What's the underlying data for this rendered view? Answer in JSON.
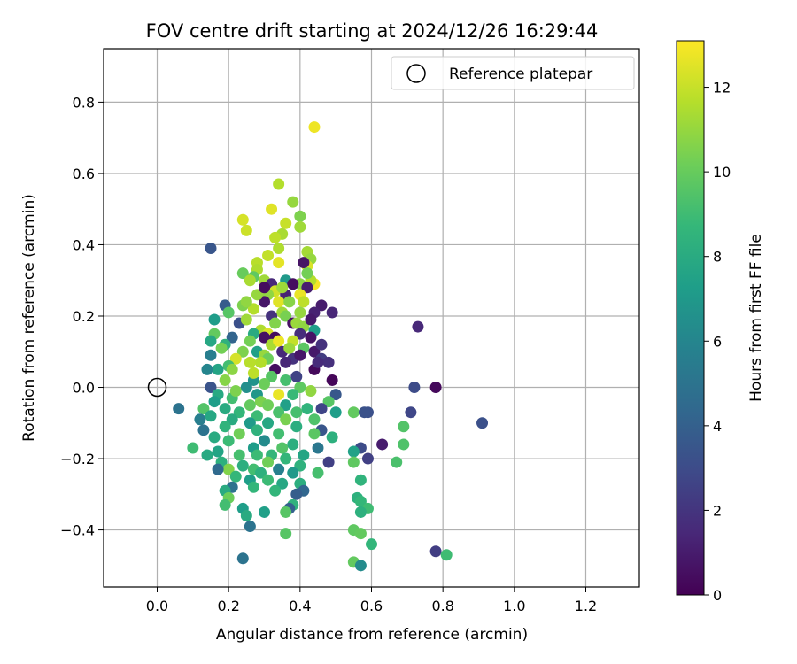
{
  "chart_data": {
    "type": "scatter",
    "title": "FOV centre drift starting at 2024/12/26 16:29:44",
    "xlabel": "Angular distance from reference (arcmin)",
    "ylabel": "Rotation from reference (arcmin)",
    "xlim": [
      -0.15,
      1.35
    ],
    "ylim": [
      -0.56,
      0.95
    ],
    "xticks": [
      0.0,
      0.2,
      0.4,
      0.6,
      0.8,
      1.0,
      1.2
    ],
    "xtick_labels": [
      "0.0",
      "0.2",
      "0.4",
      "0.6",
      "0.8",
      "1.0",
      "1.2"
    ],
    "yticks": [
      -0.4,
      -0.2,
      0.0,
      0.2,
      0.4,
      0.6,
      0.8
    ],
    "ytick_labels": [
      "−0.4",
      "−0.2",
      "0.0",
      "0.2",
      "0.4",
      "0.6",
      "0.8"
    ],
    "grid": true,
    "legend": {
      "placement": "top-right",
      "entries": [
        {
          "label": "Reference platepar",
          "marker": "open-circle"
        }
      ]
    },
    "reference_point": {
      "x": 0.0,
      "y": 0.0
    },
    "colorbar": {
      "label": "Hours from first FF file",
      "colormap": "viridis",
      "range": [
        0,
        13.1
      ],
      "ticks": [
        0,
        2,
        4,
        6,
        8,
        10,
        12
      ],
      "tick_labels": [
        "0",
        "2",
        "4",
        "6",
        "8",
        "10",
        "12"
      ]
    },
    "colormap_stops": [
      "#440154",
      "#482878",
      "#3e4a89",
      "#31688e",
      "#26828e",
      "#1f9e89",
      "#35b779",
      "#6ece58",
      "#b5de2b",
      "#fde725"
    ],
    "points": [
      [
        0.44,
        0.73,
        12.8
      ],
      [
        0.34,
        0.57,
        11.6
      ],
      [
        0.38,
        0.52,
        11.0
      ],
      [
        0.4,
        0.48,
        10.5
      ],
      [
        0.32,
        0.5,
        12.5
      ],
      [
        0.24,
        0.47,
        12.3
      ],
      [
        0.36,
        0.46,
        12.0
      ],
      [
        0.25,
        0.44,
        12.1
      ],
      [
        0.4,
        0.45,
        11.2
      ],
      [
        0.35,
        0.43,
        11.4
      ],
      [
        0.33,
        0.42,
        11.8
      ],
      [
        0.34,
        0.39,
        11.5
      ],
      [
        0.15,
        0.39,
        3.5
      ],
      [
        0.42,
        0.38,
        11.3
      ],
      [
        0.31,
        0.37,
        11.9
      ],
      [
        0.43,
        0.36,
        11.0
      ],
      [
        0.28,
        0.35,
        11.7
      ],
      [
        0.42,
        0.34,
        12.4
      ],
      [
        0.34,
        0.35,
        12.6
      ],
      [
        0.28,
        0.33,
        11.5
      ],
      [
        0.24,
        0.32,
        10.0
      ],
      [
        0.27,
        0.31,
        9.8
      ],
      [
        0.41,
        0.35,
        0.7
      ],
      [
        0.44,
        0.29,
        12.9
      ],
      [
        0.43,
        0.3,
        11.6
      ],
      [
        0.3,
        0.3,
        11.2
      ],
      [
        0.36,
        0.3,
        7.0
      ],
      [
        0.32,
        0.29,
        1.5
      ],
      [
        0.26,
        0.3,
        11.4
      ],
      [
        0.4,
        0.29,
        10.8
      ],
      [
        0.38,
        0.29,
        0.5
      ],
      [
        0.42,
        0.28,
        1.1
      ],
      [
        0.33,
        0.27,
        12.2
      ],
      [
        0.31,
        0.26,
        10.9
      ],
      [
        0.36,
        0.26,
        1.3
      ],
      [
        0.4,
        0.26,
        12.7
      ],
      [
        0.41,
        0.24,
        11.8
      ],
      [
        0.34,
        0.24,
        12.5
      ],
      [
        0.3,
        0.24,
        0.8
      ],
      [
        0.37,
        0.24,
        10.7
      ],
      [
        0.27,
        0.22,
        12.9
      ],
      [
        0.35,
        0.21,
        11.2
      ],
      [
        0.46,
        0.23,
        1.0
      ],
      [
        0.49,
        0.21,
        1.4
      ],
      [
        0.24,
        0.23,
        10.5
      ],
      [
        0.27,
        0.22,
        11.6
      ],
      [
        0.19,
        0.23,
        3.8
      ],
      [
        0.2,
        0.21,
        9.6
      ],
      [
        0.32,
        0.2,
        1.9
      ],
      [
        0.36,
        0.2,
        10.4
      ],
      [
        0.4,
        0.21,
        11.0
      ],
      [
        0.44,
        0.21,
        1.2
      ],
      [
        0.38,
        0.18,
        0.6
      ],
      [
        0.23,
        0.18,
        3.2
      ],
      [
        0.16,
        0.19,
        7.2
      ],
      [
        0.39,
        0.18,
        11.1
      ],
      [
        0.29,
        0.16,
        11.5
      ],
      [
        0.41,
        0.17,
        10.9
      ],
      [
        0.27,
        0.15,
        8.0
      ],
      [
        0.31,
        0.15,
        12.4
      ],
      [
        0.44,
        0.16,
        7.3
      ],
      [
        0.33,
        0.14,
        0.4
      ],
      [
        0.4,
        0.15,
        1.7
      ],
      [
        0.16,
        0.15,
        9.9
      ],
      [
        0.21,
        0.14,
        4.2
      ],
      [
        0.3,
        0.14,
        0.6
      ],
      [
        0.38,
        0.13,
        11.9
      ],
      [
        0.26,
        0.13,
        10.3
      ],
      [
        0.32,
        0.12,
        11.4
      ],
      [
        0.34,
        0.13,
        12.8
      ],
      [
        0.43,
        0.14,
        0.7
      ],
      [
        0.15,
        0.13,
        7.8
      ],
      [
        0.19,
        0.12,
        8.4
      ],
      [
        0.41,
        0.11,
        9.7
      ],
      [
        0.35,
        0.1,
        1.5
      ],
      [
        0.24,
        0.1,
        10.5
      ],
      [
        0.28,
        0.1,
        7.4
      ],
      [
        0.44,
        0.1,
        0.9
      ],
      [
        0.3,
        0.09,
        11.0
      ],
      [
        0.15,
        0.09,
        5.6
      ],
      [
        0.46,
        0.08,
        2.3
      ],
      [
        0.31,
        0.08,
        10.1
      ],
      [
        0.38,
        0.08,
        1.9
      ],
      [
        0.22,
        0.08,
        12.3
      ],
      [
        0.4,
        0.09,
        0.8
      ],
      [
        0.29,
        0.07,
        11.6
      ],
      [
        0.36,
        0.07,
        1.4
      ],
      [
        0.48,
        0.07,
        1.8
      ],
      [
        0.2,
        0.06,
        9.1
      ],
      [
        0.26,
        0.07,
        11.7
      ],
      [
        0.17,
        0.05,
        7.6
      ],
      [
        0.33,
        0.05,
        0.5
      ],
      [
        0.44,
        0.05,
        0.3
      ],
      [
        0.14,
        0.05,
        6.0
      ],
      [
        0.21,
        0.05,
        10.8
      ],
      [
        0.32,
        0.03,
        9.6
      ],
      [
        0.39,
        0.03,
        2.6
      ],
      [
        0.27,
        0.02,
        6.7
      ],
      [
        0.49,
        0.02,
        0.2
      ],
      [
        0.36,
        0.02,
        9.2
      ],
      [
        0.19,
        0.02,
        10.7
      ],
      [
        0.3,
        0.01,
        10.1
      ],
      [
        0.15,
        0.0,
        3.4
      ],
      [
        0.4,
        0.0,
        9.8
      ],
      [
        0.25,
        0.0,
        6.5
      ],
      [
        0.34,
        -0.02,
        12.7
      ],
      [
        0.43,
        -0.01,
        10.9
      ],
      [
        0.5,
        -0.02,
        3.6
      ],
      [
        0.28,
        -0.02,
        6.9
      ],
      [
        0.17,
        -0.02,
        7.9
      ],
      [
        0.38,
        -0.02,
        8.8
      ],
      [
        0.21,
        -0.03,
        9.1
      ],
      [
        0.29,
        -0.04,
        10.5
      ],
      [
        0.06,
        -0.06,
        5.0
      ],
      [
        0.16,
        -0.04,
        7.3
      ],
      [
        0.48,
        -0.04,
        9.6
      ],
      [
        0.36,
        -0.05,
        7.4
      ],
      [
        0.26,
        -0.05,
        9.9
      ],
      [
        0.42,
        -0.06,
        8.5
      ],
      [
        0.31,
        -0.05,
        10.2
      ],
      [
        0.19,
        -0.06,
        8.0
      ],
      [
        0.13,
        -0.06,
        9.5
      ],
      [
        0.46,
        -0.06,
        2.7
      ],
      [
        0.23,
        -0.07,
        8.6
      ],
      [
        0.34,
        -0.07,
        9.3
      ],
      [
        0.59,
        -0.07,
        3.2
      ],
      [
        0.55,
        -0.07,
        9.9
      ],
      [
        0.5,
        -0.07,
        7.3
      ],
      [
        0.71,
        -0.07,
        2.8
      ],
      [
        0.39,
        -0.07,
        9.2
      ],
      [
        0.28,
        -0.08,
        8.9
      ],
      [
        0.15,
        -0.08,
        7.8
      ],
      [
        0.21,
        -0.09,
        8.0
      ],
      [
        0.12,
        -0.09,
        5.6
      ],
      [
        0.36,
        -0.09,
        10.4
      ],
      [
        0.26,
        -0.1,
        7.1
      ],
      [
        0.44,
        -0.09,
        9.4
      ],
      [
        0.31,
        -0.1,
        7.8
      ],
      [
        0.19,
        -0.11,
        8.5
      ],
      [
        0.69,
        -0.11,
        9.5
      ],
      [
        0.39,
        -0.11,
        8.2
      ],
      [
        0.46,
        -0.12,
        3.5
      ],
      [
        0.28,
        -0.12,
        8.4
      ],
      [
        0.13,
        -0.12,
        5.0
      ],
      [
        0.23,
        -0.13,
        10.2
      ],
      [
        0.34,
        -0.13,
        9.1
      ],
      [
        0.44,
        -0.13,
        9.7
      ],
      [
        0.16,
        -0.14,
        8.0
      ],
      [
        0.49,
        -0.14,
        8.3
      ],
      [
        0.63,
        -0.16,
        1.0
      ],
      [
        0.3,
        -0.15,
        6.3
      ],
      [
        0.2,
        -0.15,
        8.9
      ],
      [
        0.38,
        -0.16,
        8.2
      ],
      [
        0.57,
        -0.17,
        3.0
      ],
      [
        0.27,
        -0.17,
        7.2
      ],
      [
        0.1,
        -0.17,
        9.0
      ],
      [
        0.45,
        -0.17,
        5.2
      ],
      [
        0.35,
        -0.17,
        9.5
      ],
      [
        0.69,
        -0.16,
        9.4
      ],
      [
        0.17,
        -0.18,
        7.6
      ],
      [
        0.55,
        -0.18,
        7.5
      ],
      [
        0.32,
        -0.19,
        8.6
      ],
      [
        0.41,
        -0.19,
        7.7
      ],
      [
        0.23,
        -0.19,
        9.2
      ],
      [
        0.28,
        -0.19,
        8.9
      ],
      [
        0.14,
        -0.19,
        7.9
      ],
      [
        0.36,
        -0.2,
        8.6
      ],
      [
        0.48,
        -0.21,
        2.5
      ],
      [
        0.59,
        -0.2,
        2.5
      ],
      [
        0.31,
        -0.21,
        10.2
      ],
      [
        0.18,
        -0.21,
        8.3
      ],
      [
        0.55,
        -0.21,
        9.8
      ],
      [
        0.4,
        -0.22,
        8.4
      ],
      [
        0.24,
        -0.22,
        8.2
      ],
      [
        0.67,
        -0.21,
        9.3
      ],
      [
        0.27,
        -0.23,
        9.1
      ],
      [
        0.2,
        -0.23,
        10.6
      ],
      [
        0.34,
        -0.23,
        5.7
      ],
      [
        0.17,
        -0.23,
        4.5
      ],
      [
        0.38,
        -0.24,
        7.0
      ],
      [
        0.29,
        -0.24,
        8.3
      ],
      [
        0.45,
        -0.24,
        9.2
      ],
      [
        0.22,
        -0.25,
        8.7
      ],
      [
        0.57,
        -0.26,
        8.5
      ],
      [
        0.31,
        -0.26,
        8.9
      ],
      [
        0.26,
        -0.26,
        7.3
      ],
      [
        0.4,
        -0.27,
        8.2
      ],
      [
        0.35,
        -0.27,
        7.8
      ],
      [
        0.21,
        -0.28,
        4.9
      ],
      [
        0.27,
        -0.28,
        8.6
      ],
      [
        0.41,
        -0.29,
        4.3
      ],
      [
        0.33,
        -0.29,
        8.6
      ],
      [
        0.19,
        -0.29,
        8.0
      ],
      [
        0.39,
        -0.3,
        3.9
      ],
      [
        0.2,
        -0.31,
        10.1
      ],
      [
        0.56,
        -0.31,
        8.3
      ],
      [
        0.57,
        -0.32,
        8.7
      ],
      [
        0.19,
        -0.33,
        9.1
      ],
      [
        0.38,
        -0.33,
        8.4
      ],
      [
        0.59,
        -0.34,
        9.0
      ],
      [
        0.24,
        -0.34,
        7.3
      ],
      [
        0.37,
        -0.34,
        4.0
      ],
      [
        0.3,
        -0.35,
        7.4
      ],
      [
        0.36,
        -0.35,
        9.6
      ],
      [
        0.57,
        -0.35,
        8.3
      ],
      [
        0.25,
        -0.36,
        8.0
      ],
      [
        0.26,
        -0.39,
        5.0
      ],
      [
        0.55,
        -0.4,
        9.8
      ],
      [
        0.57,
        -0.41,
        9.9
      ],
      [
        0.36,
        -0.41,
        9.6
      ],
      [
        0.6,
        -0.44,
        8.6
      ],
      [
        0.78,
        -0.46,
        2.4
      ],
      [
        0.81,
        -0.47,
        9.0
      ],
      [
        0.24,
        -0.48,
        5.0
      ],
      [
        0.55,
        -0.49,
        9.9
      ],
      [
        0.57,
        -0.5,
        6.3
      ],
      [
        0.73,
        0.17,
        1.5
      ],
      [
        0.72,
        0.0,
        3.0
      ],
      [
        0.78,
        0.0,
        0.3
      ],
      [
        0.91,
        -0.1,
        3.2
      ],
      [
        0.58,
        -0.07,
        3.3
      ],
      [
        0.22,
        -0.01,
        10.5
      ],
      [
        0.25,
        0.19,
        11.2
      ],
      [
        0.37,
        0.11,
        11.1
      ],
      [
        0.18,
        0.11,
        10.3
      ],
      [
        0.28,
        0.26,
        11.0
      ],
      [
        0.33,
        0.18,
        10.6
      ],
      [
        0.46,
        0.12,
        1.9
      ],
      [
        0.35,
        0.28,
        11.2
      ],
      [
        0.42,
        0.32,
        10.3
      ],
      [
        0.45,
        0.07,
        1.6
      ],
      [
        0.3,
        0.28,
        0.4
      ],
      [
        0.27,
        0.04,
        11.8
      ],
      [
        0.43,
        0.19,
        0.9
      ],
      [
        0.25,
        0.24,
        10.9
      ]
    ]
  }
}
